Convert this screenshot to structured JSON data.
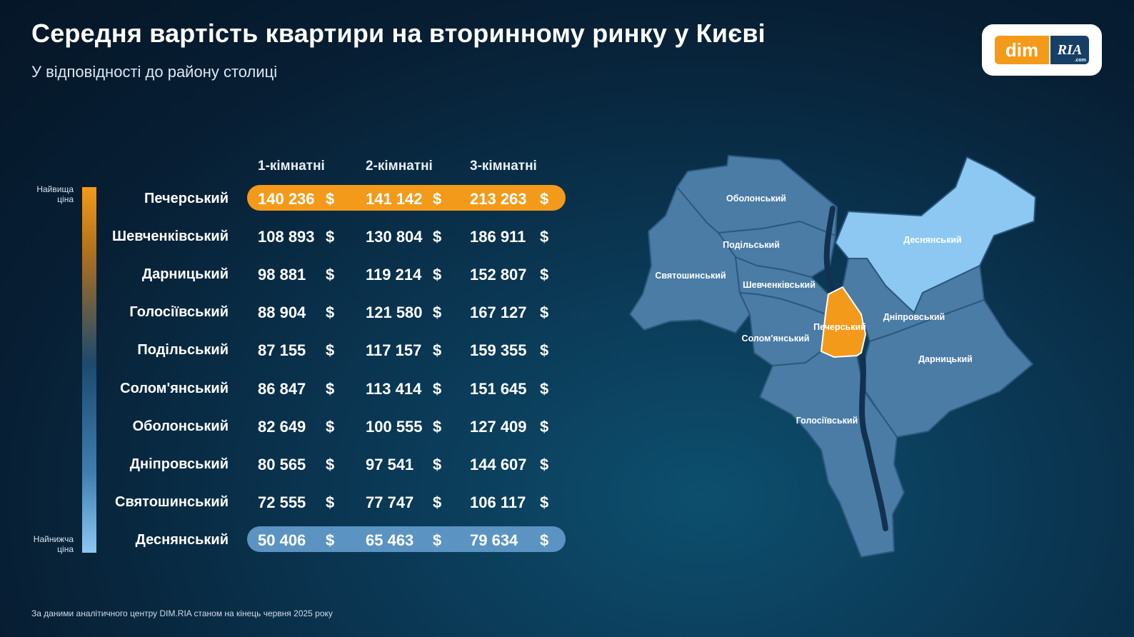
{
  "title": "Середня вартість квартири на вторинному ринку у Києві",
  "subtitle": "У відповідності до району столиці",
  "logo": {
    "left": "dim",
    "right": "RIA",
    "suffix": ".com"
  },
  "scale": {
    "top_line1": "Найвища",
    "top_line2": "ціна",
    "bottom_line1": "Найнижча",
    "bottom_line2": "ціна"
  },
  "currency": "$",
  "colors": {
    "accent": "#f39a1a",
    "lowest": "#5b93c2",
    "map_fill": "#4a7ca6",
    "map_lowest": "#8cc8f2"
  },
  "footnote": "За даними аналітичного центру DIM.RIA станом на кінець червня 2025 року",
  "map_labels": {
    "obolonskyi": "Оболонський",
    "desnianskyi": "Деснянський",
    "podilskyi": "Подільський",
    "sviatoshynskyi": "Святошинський",
    "shevchenkivskyi": "Шевченківський",
    "pecherskyi": "Печерський",
    "dniprovskyi": "Дніпровський",
    "solomianskyi": "Солом'янський",
    "darnytskyi": "Дарницький",
    "holosiivskyi": "Голосіївський"
  },
  "chart_data": {
    "type": "table",
    "title": "Середня вартість квартири на вторинному ринку у Києві",
    "subtitle": "У відповідності до району столиці",
    "unit": "$",
    "columns": [
      "1-кімнатні",
      "2-кімнатні",
      "3-кімнатні"
    ],
    "rows": [
      {
        "district": "Печерський",
        "values": [
          "140 236",
          "141 142",
          "213 263"
        ]
      },
      {
        "district": "Шевченківський",
        "values": [
          "108 893",
          "130 804",
          "186 911"
        ]
      },
      {
        "district": "Дарницький",
        "values": [
          "98 881",
          "119 214",
          "152 807"
        ]
      },
      {
        "district": "Голосіївський",
        "values": [
          "88 904",
          "121 580",
          "167 127"
        ]
      },
      {
        "district": "Подільський",
        "values": [
          "87 155",
          "117 157",
          "159 355"
        ]
      },
      {
        "district": "Солом'янський",
        "values": [
          "86 847",
          "113 414",
          "151 645"
        ]
      },
      {
        "district": "Оболонський",
        "values": [
          "82 649",
          "100 555",
          "127 409"
        ]
      },
      {
        "district": "Дніпровський",
        "values": [
          "80 565",
          "97 541",
          "144 607"
        ]
      },
      {
        "district": "Святошинський",
        "values": [
          "72 555",
          "77 747",
          "106 117"
        ]
      },
      {
        "district": "Деснянський",
        "values": [
          "50 406",
          "65 463",
          "79 634"
        ]
      }
    ]
  }
}
